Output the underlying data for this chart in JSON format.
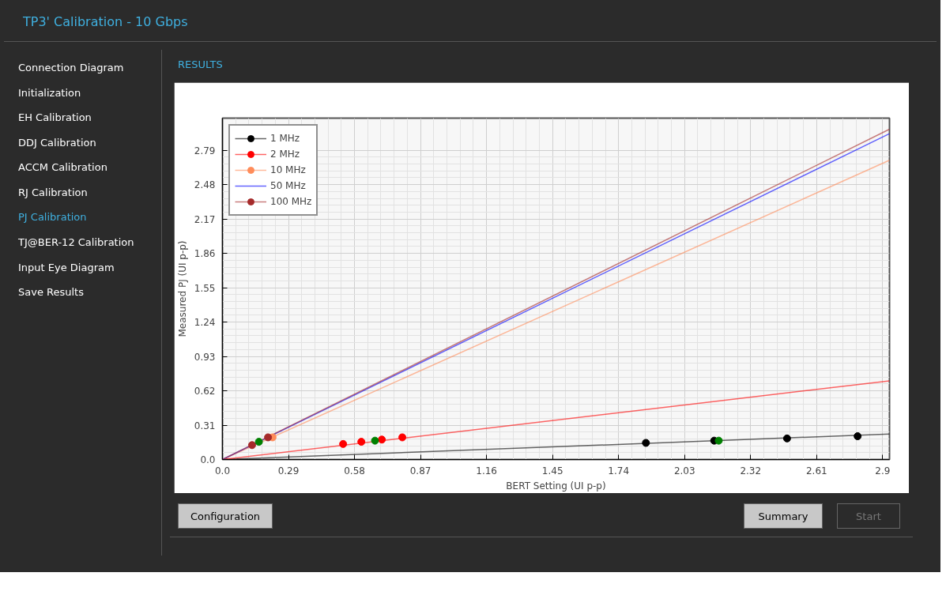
{
  "chart_data": {
    "type": "scatter",
    "title": "TP3' Calibration - 10 Gbps",
    "subtitle": "RESULTS",
    "xlabel": "BERT Setting (UI p-p)",
    "ylabel": "Measured PJ (UI p-p)",
    "annotations": [
      "Connection Diagram",
      "Initialization",
      "EH Calibration",
      "DDJ Calibration",
      "ACCM Calibration",
      "RJ Calibration",
      "PJ Calibration",
      "TJ@BER-12 Calibration",
      "Input Eye Diagram",
      "Save Results",
      "Configuration",
      "Summary",
      "Start"
    ],
    "xlim": [
      0,
      2.93
    ],
    "ylim": [
      0,
      3.08
    ],
    "xticks": [
      {
        "value": 0,
        "label": "0.0"
      },
      0.29,
      0.58,
      0.87,
      1.16,
      1.45,
      1.74,
      2.03,
      2.32,
      2.61,
      2.9
    ],
    "yticks": [
      {
        "value": 0,
        "label": "0.0"
      },
      0.31,
      0.62,
      0.93,
      1.24,
      1.55,
      1.86,
      2.17,
      2.48,
      2.79
    ],
    "grid": true,
    "legend": "top left",
    "marker": "circle",
    "series": [
      {
        "type": "line",
        "marker": "none",
        "name": "1 MHz",
        "color": "#000000",
        "x": [
          0,
          2.93
        ],
        "values": [
          0,
          0.23
        ]
      },
      {
        "type": "line",
        "marker": "none",
        "name": "2 MHz",
        "color": "#ff0000",
        "x": [
          0,
          2.93
        ],
        "values": [
          0,
          0.71
        ]
      },
      {
        "type": "line",
        "marker": "none",
        "name": "10 MHz",
        "color": "#ff8c5a",
        "x": [
          0,
          2.93
        ],
        "values": [
          0,
          2.7
        ]
      },
      {
        "type": "line",
        "marker": "none",
        "name": "50 MHz",
        "color": "#0000ff",
        "x": [
          0,
          2.93
        ],
        "values": [
          0,
          2.94
        ]
      },
      {
        "type": "line",
        "marker": "none",
        "name": "100 MHz",
        "color": "#a52a2a",
        "x": [
          0,
          2.93
        ],
        "values": [
          0,
          2.98
        ]
      },
      {
        "color": "#000000",
        "x": [
          1.86,
          2.16,
          2.48,
          2.79
        ],
        "values": [
          0.15,
          0.17,
          0.19,
          0.21
        ]
      },
      {
        "color": "#ff0000",
        "x": [
          0.53,
          0.61,
          0.7,
          0.79
        ],
        "values": [
          0.14,
          0.16,
          0.18,
          0.2
        ]
      },
      {
        "color": "#ff8c5a",
        "x": [
          0.22
        ],
        "values": [
          0.2
        ]
      },
      {
        "color": "#a52a2a",
        "x": [
          0.13,
          0.2
        ],
        "values": [
          0.13,
          0.2
        ]
      },
      {
        "color": "#008000",
        "x": [
          0.16,
          0.67,
          2.18
        ],
        "values": [
          0.16,
          0.17,
          0.17
        ]
      }
    ]
  }
}
